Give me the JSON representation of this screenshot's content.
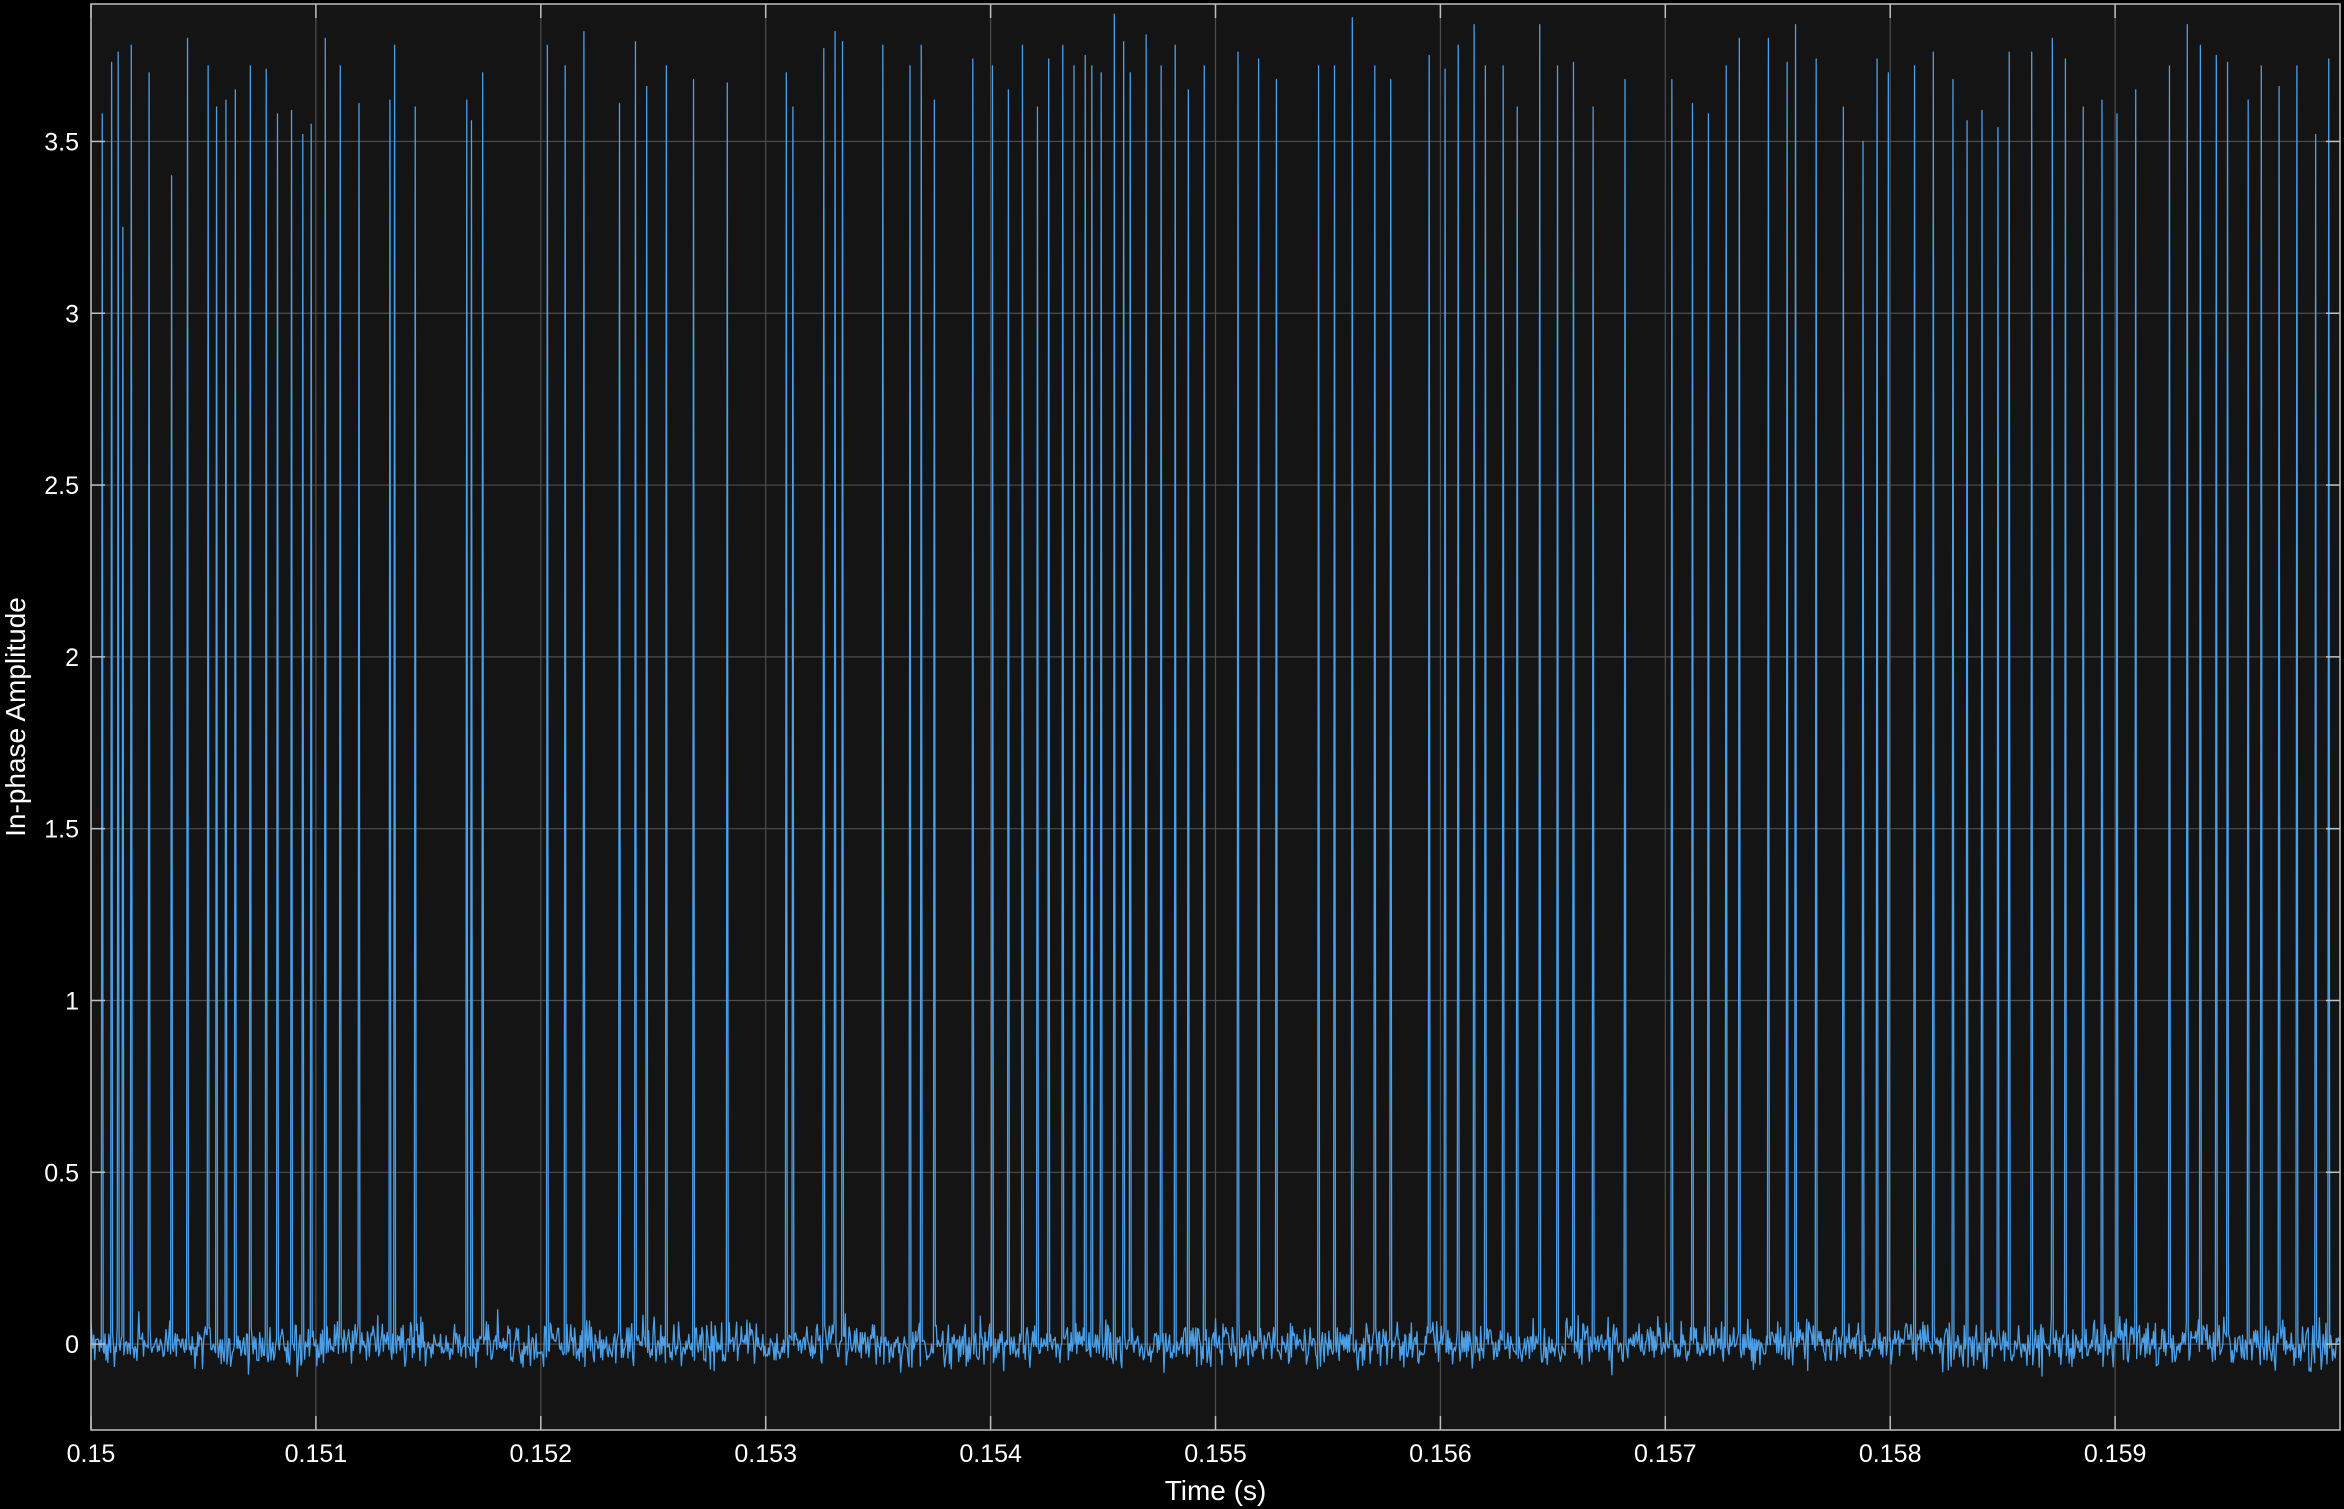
{
  "chart_data": {
    "type": "line",
    "title": "",
    "xlabel": "Time (s)",
    "ylabel": "In-phase Amplitude",
    "xlim": [
      0.15,
      0.16
    ],
    "ylim": [
      -0.25,
      3.9
    ],
    "grid": true,
    "legend": "none",
    "x_ticks": [
      0.15,
      0.151,
      0.152,
      0.153,
      0.154,
      0.155,
      0.156,
      0.157,
      0.158,
      0.159
    ],
    "x_tick_labels": [
      "0.15",
      "0.151",
      "0.152",
      "0.153",
      "0.154",
      "0.155",
      "0.156",
      "0.157",
      "0.158",
      "0.159"
    ],
    "y_ticks": [
      0,
      0.5,
      1,
      1.5,
      2,
      2.5,
      3,
      3.5
    ],
    "y_tick_labels": [
      "0",
      "0.5",
      "1",
      "1.5",
      "2",
      "2.5",
      "3",
      "3.5"
    ],
    "series": [
      {
        "color": "#4a9fe8",
        "noise_std": 0.06,
        "pulses": [
          {
            "t": 0.15005,
            "v": 3.58
          },
          {
            "t": 0.15009,
            "v": 3.73
          },
          {
            "t": 0.15012,
            "v": 3.76
          },
          {
            "t": 0.15014,
            "v": 3.25
          },
          {
            "t": 0.15018,
            "v": 3.78
          },
          {
            "t": 0.15026,
            "v": 3.7
          },
          {
            "t": 0.15036,
            "v": 3.4
          },
          {
            "t": 0.15043,
            "v": 3.8
          },
          {
            "t": 0.15052,
            "v": 3.72
          },
          {
            "t": 0.15056,
            "v": 3.6
          },
          {
            "t": 0.1506,
            "v": 3.62
          },
          {
            "t": 0.15064,
            "v": 3.65
          },
          {
            "t": 0.15071,
            "v": 3.72
          },
          {
            "t": 0.15078,
            "v": 3.71
          },
          {
            "t": 0.15083,
            "v": 3.58
          },
          {
            "t": 0.15089,
            "v": 3.59
          },
          {
            "t": 0.15094,
            "v": 3.52
          },
          {
            "t": 0.15098,
            "v": 3.55
          },
          {
            "t": 0.15104,
            "v": 3.8
          },
          {
            "t": 0.15111,
            "v": 3.72
          },
          {
            "t": 0.15119,
            "v": 3.61
          },
          {
            "t": 0.15133,
            "v": 3.62
          },
          {
            "t": 0.15135,
            "v": 3.78
          },
          {
            "t": 0.15144,
            "v": 3.6
          },
          {
            "t": 0.15167,
            "v": 3.62
          },
          {
            "t": 0.15169,
            "v": 3.56
          },
          {
            "t": 0.15174,
            "v": 3.7
          },
          {
            "t": 0.15203,
            "v": 3.78
          },
          {
            "t": 0.15211,
            "v": 3.72
          },
          {
            "t": 0.15219,
            "v": 3.82
          },
          {
            "t": 0.15235,
            "v": 3.61
          },
          {
            "t": 0.15242,
            "v": 3.79
          },
          {
            "t": 0.15247,
            "v": 3.66
          },
          {
            "t": 0.15256,
            "v": 3.72
          },
          {
            "t": 0.15268,
            "v": 3.68
          },
          {
            "t": 0.15283,
            "v": 3.67
          },
          {
            "t": 0.15309,
            "v": 3.7
          },
          {
            "t": 0.15312,
            "v": 3.6
          },
          {
            "t": 0.15326,
            "v": 3.77
          },
          {
            "t": 0.15331,
            "v": 3.82
          },
          {
            "t": 0.15334,
            "v": 3.79
          },
          {
            "t": 0.15352,
            "v": 3.78
          },
          {
            "t": 0.15364,
            "v": 3.72
          },
          {
            "t": 0.15369,
            "v": 3.78
          },
          {
            "t": 0.15375,
            "v": 3.62
          },
          {
            "t": 0.15392,
            "v": 3.74
          },
          {
            "t": 0.15401,
            "v": 3.72
          },
          {
            "t": 0.15408,
            "v": 3.65
          },
          {
            "t": 0.15414,
            "v": 3.78
          },
          {
            "t": 0.15421,
            "v": 3.6
          },
          {
            "t": 0.15426,
            "v": 3.74
          },
          {
            "t": 0.15432,
            "v": 3.78
          },
          {
            "t": 0.15437,
            "v": 3.72
          },
          {
            "t": 0.15442,
            "v": 3.75
          },
          {
            "t": 0.15445,
            "v": 3.72
          },
          {
            "t": 0.15449,
            "v": 3.7
          },
          {
            "t": 0.15455,
            "v": 3.87
          },
          {
            "t": 0.15459,
            "v": 3.79
          },
          {
            "t": 0.15462,
            "v": 3.7
          },
          {
            "t": 0.15469,
            "v": 3.81
          },
          {
            "t": 0.15476,
            "v": 3.72
          },
          {
            "t": 0.15482,
            "v": 3.78
          },
          {
            "t": 0.15488,
            "v": 3.65
          },
          {
            "t": 0.15495,
            "v": 3.72
          },
          {
            "t": 0.1551,
            "v": 3.76
          },
          {
            "t": 0.15519,
            "v": 3.74
          },
          {
            "t": 0.15527,
            "v": 3.68
          },
          {
            "t": 0.15546,
            "v": 3.72
          },
          {
            "t": 0.15553,
            "v": 3.72
          },
          {
            "t": 0.15561,
            "v": 3.86
          },
          {
            "t": 0.15571,
            "v": 3.72
          },
          {
            "t": 0.15578,
            "v": 3.68
          },
          {
            "t": 0.15595,
            "v": 3.75
          },
          {
            "t": 0.15602,
            "v": 3.71
          },
          {
            "t": 0.15608,
            "v": 3.78
          },
          {
            "t": 0.15615,
            "v": 3.84
          },
          {
            "t": 0.1562,
            "v": 3.72
          },
          {
            "t": 0.15628,
            "v": 3.72
          },
          {
            "t": 0.15634,
            "v": 3.6
          },
          {
            "t": 0.15644,
            "v": 3.84
          },
          {
            "t": 0.15652,
            "v": 3.72
          },
          {
            "t": 0.15659,
            "v": 3.73
          },
          {
            "t": 0.15668,
            "v": 3.6
          },
          {
            "t": 0.15682,
            "v": 3.68
          },
          {
            "t": 0.15703,
            "v": 3.68
          },
          {
            "t": 0.15712,
            "v": 3.61
          },
          {
            "t": 0.15719,
            "v": 3.58
          },
          {
            "t": 0.15727,
            "v": 3.72
          },
          {
            "t": 0.15733,
            "v": 3.8
          },
          {
            "t": 0.15746,
            "v": 3.8
          },
          {
            "t": 0.15754,
            "v": 3.73
          },
          {
            "t": 0.15758,
            "v": 3.84
          },
          {
            "t": 0.15767,
            "v": 3.74
          },
          {
            "t": 0.15779,
            "v": 3.6
          },
          {
            "t": 0.15788,
            "v": 3.5
          },
          {
            "t": 0.15794,
            "v": 3.74
          },
          {
            "t": 0.15799,
            "v": 3.7
          },
          {
            "t": 0.15811,
            "v": 3.72
          },
          {
            "t": 0.15819,
            "v": 3.76
          },
          {
            "t": 0.15828,
            "v": 3.68
          },
          {
            "t": 0.15834,
            "v": 3.56
          },
          {
            "t": 0.15841,
            "v": 3.59
          },
          {
            "t": 0.15848,
            "v": 3.54
          },
          {
            "t": 0.15853,
            "v": 3.76
          },
          {
            "t": 0.15863,
            "v": 3.76
          },
          {
            "t": 0.15872,
            "v": 3.8
          },
          {
            "t": 0.15878,
            "v": 3.74
          },
          {
            "t": 0.15886,
            "v": 3.6
          },
          {
            "t": 0.15894,
            "v": 3.62
          },
          {
            "t": 0.15901,
            "v": 3.58
          },
          {
            "t": 0.15909,
            "v": 3.65
          },
          {
            "t": 0.15924,
            "v": 3.72
          },
          {
            "t": 0.15932,
            "v": 3.84
          },
          {
            "t": 0.15938,
            "v": 3.78
          },
          {
            "t": 0.15945,
            "v": 3.75
          },
          {
            "t": 0.1595,
            "v": 3.73
          },
          {
            "t": 0.15959,
            "v": 3.62
          },
          {
            "t": 0.15965,
            "v": 3.72
          },
          {
            "t": 0.15973,
            "v": 3.66
          },
          {
            "t": 0.15981,
            "v": 3.72
          },
          {
            "t": 0.15989,
            "v": 3.52
          },
          {
            "t": 0.15995,
            "v": 3.74
          }
        ]
      }
    ]
  },
  "colors": {
    "figure_background": "#000000",
    "axes_background": "#141414",
    "grid": "#4d4d4d",
    "axis_line": "#bfbfbf",
    "text": "#ffffff"
  }
}
